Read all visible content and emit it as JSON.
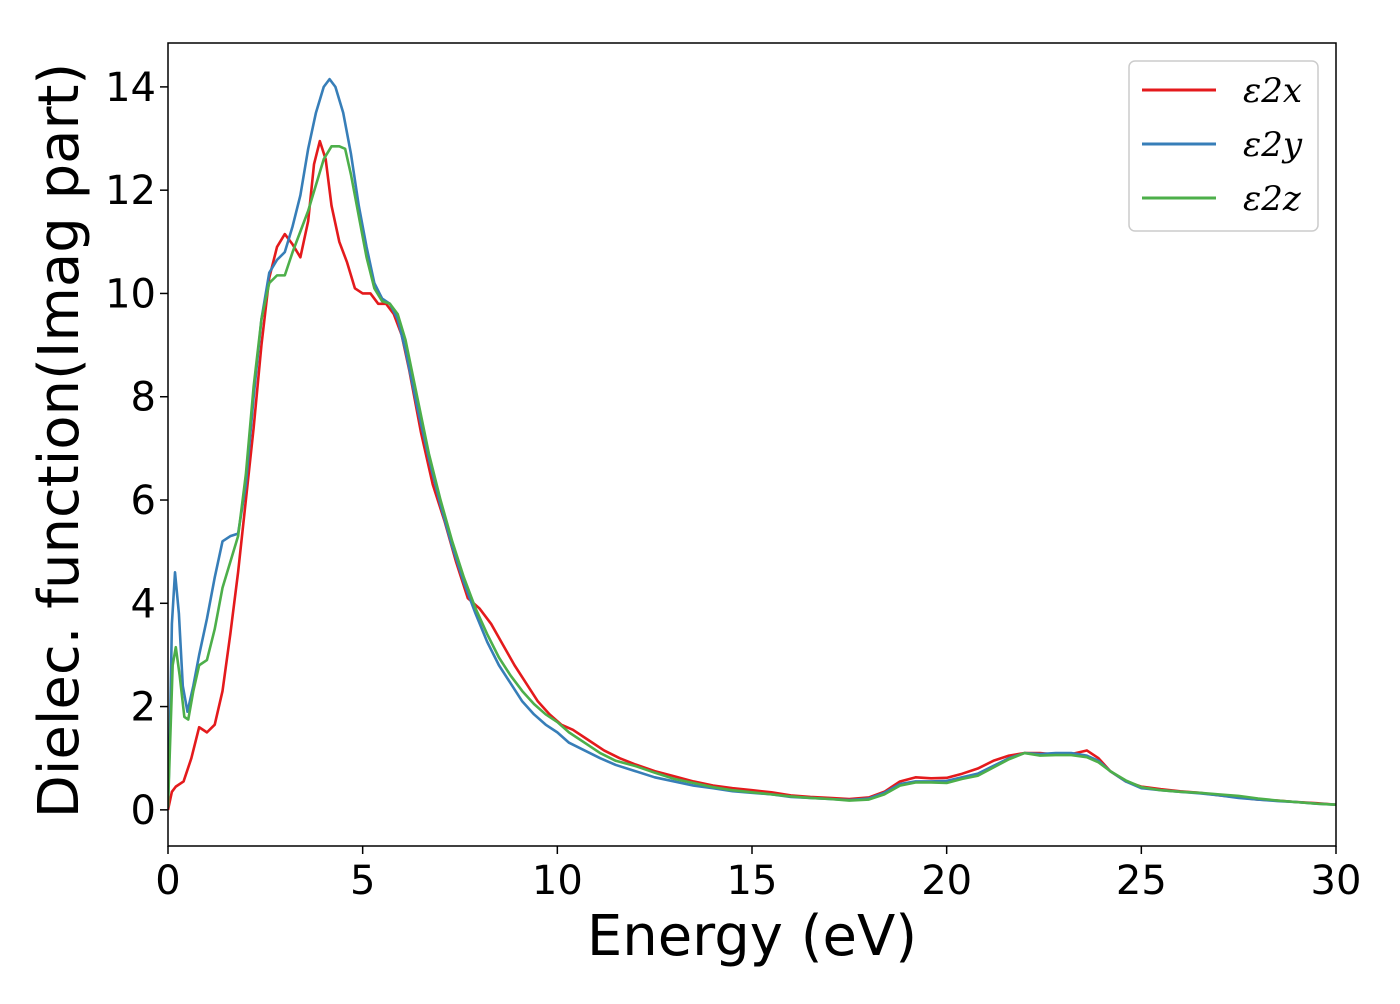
{
  "chart_data": {
    "type": "line",
    "title": "",
    "xlabel": "Energy (eV)",
    "ylabel": "Dielec. function(Imag part)",
    "xlim": [
      0,
      30
    ],
    "ylim": [
      -0.7,
      14.85
    ],
    "xticks": [
      0,
      5,
      10,
      15,
      20,
      25,
      30
    ],
    "yticks": [
      0,
      2,
      4,
      6,
      8,
      10,
      12,
      14
    ],
    "grid": false,
    "legend_position": "top-right",
    "series": [
      {
        "name": "ε2x",
        "color": "#e41a1c",
        "points": [
          [
            0,
            0
          ],
          [
            0.1,
            0.35
          ],
          [
            0.2,
            0.45
          ],
          [
            0.4,
            0.55
          ],
          [
            0.6,
            1.0
          ],
          [
            0.8,
            1.6
          ],
          [
            1.0,
            1.5
          ],
          [
            1.2,
            1.65
          ],
          [
            1.4,
            2.3
          ],
          [
            1.6,
            3.4
          ],
          [
            1.8,
            4.6
          ],
          [
            2.0,
            6.0
          ],
          [
            2.2,
            7.4
          ],
          [
            2.4,
            9.0
          ],
          [
            2.6,
            10.3
          ],
          [
            2.8,
            10.9
          ],
          [
            3.0,
            11.15
          ],
          [
            3.2,
            10.95
          ],
          [
            3.4,
            10.7
          ],
          [
            3.6,
            11.4
          ],
          [
            3.75,
            12.5
          ],
          [
            3.9,
            12.95
          ],
          [
            4.05,
            12.6
          ],
          [
            4.2,
            11.7
          ],
          [
            4.4,
            11.0
          ],
          [
            4.6,
            10.6
          ],
          [
            4.8,
            10.1
          ],
          [
            5.0,
            10.0
          ],
          [
            5.2,
            10.0
          ],
          [
            5.4,
            9.8
          ],
          [
            5.6,
            9.8
          ],
          [
            5.8,
            9.6
          ],
          [
            6.0,
            9.2
          ],
          [
            6.2,
            8.5
          ],
          [
            6.5,
            7.3
          ],
          [
            6.8,
            6.3
          ],
          [
            7.1,
            5.6
          ],
          [
            7.4,
            4.8
          ],
          [
            7.7,
            4.1
          ],
          [
            8.0,
            3.9
          ],
          [
            8.3,
            3.6
          ],
          [
            8.6,
            3.2
          ],
          [
            8.9,
            2.8
          ],
          [
            9.2,
            2.45
          ],
          [
            9.5,
            2.1
          ],
          [
            9.8,
            1.85
          ],
          [
            10.1,
            1.65
          ],
          [
            10.4,
            1.55
          ],
          [
            10.8,
            1.35
          ],
          [
            11.2,
            1.15
          ],
          [
            11.6,
            1.0
          ],
          [
            12.0,
            0.88
          ],
          [
            12.5,
            0.75
          ],
          [
            13.0,
            0.65
          ],
          [
            13.5,
            0.55
          ],
          [
            14.0,
            0.47
          ],
          [
            14.5,
            0.42
          ],
          [
            15.0,
            0.38
          ],
          [
            15.5,
            0.34
          ],
          [
            16.0,
            0.28
          ],
          [
            16.5,
            0.25
          ],
          [
            17.0,
            0.23
          ],
          [
            17.5,
            0.21
          ],
          [
            18.0,
            0.24
          ],
          [
            18.4,
            0.35
          ],
          [
            18.8,
            0.55
          ],
          [
            19.2,
            0.63
          ],
          [
            19.6,
            0.61
          ],
          [
            20.0,
            0.62
          ],
          [
            20.4,
            0.7
          ],
          [
            20.8,
            0.8
          ],
          [
            21.2,
            0.95
          ],
          [
            21.6,
            1.05
          ],
          [
            22.0,
            1.1
          ],
          [
            22.4,
            1.1
          ],
          [
            22.8,
            1.07
          ],
          [
            23.2,
            1.08
          ],
          [
            23.6,
            1.15
          ],
          [
            23.9,
            1.0
          ],
          [
            24.2,
            0.75
          ],
          [
            24.6,
            0.55
          ],
          [
            25.0,
            0.45
          ],
          [
            25.5,
            0.4
          ],
          [
            26.0,
            0.36
          ],
          [
            26.5,
            0.33
          ],
          [
            27.0,
            0.28
          ],
          [
            27.5,
            0.24
          ],
          [
            28.0,
            0.2
          ],
          [
            28.5,
            0.18
          ],
          [
            29.0,
            0.15
          ],
          [
            29.5,
            0.13
          ],
          [
            30.0,
            0.1
          ]
        ]
      },
      {
        "name": "ε2y",
        "color": "#377eb8",
        "points": [
          [
            0,
            0.05
          ],
          [
            0.05,
            1.5
          ],
          [
            0.1,
            3.6
          ],
          [
            0.18,
            4.6
          ],
          [
            0.28,
            3.8
          ],
          [
            0.38,
            2.4
          ],
          [
            0.5,
            1.9
          ],
          [
            0.65,
            2.4
          ],
          [
            0.8,
            3.0
          ],
          [
            1.0,
            3.7
          ],
          [
            1.2,
            4.5
          ],
          [
            1.4,
            5.2
          ],
          [
            1.6,
            5.3
          ],
          [
            1.8,
            5.35
          ],
          [
            2.0,
            6.3
          ],
          [
            2.2,
            8.0
          ],
          [
            2.4,
            9.5
          ],
          [
            2.6,
            10.4
          ],
          [
            2.8,
            10.65
          ],
          [
            3.0,
            10.8
          ],
          [
            3.2,
            11.3
          ],
          [
            3.4,
            11.9
          ],
          [
            3.6,
            12.8
          ],
          [
            3.8,
            13.5
          ],
          [
            4.0,
            14.0
          ],
          [
            4.15,
            14.15
          ],
          [
            4.3,
            14.0
          ],
          [
            4.5,
            13.5
          ],
          [
            4.7,
            12.7
          ],
          [
            4.9,
            11.7
          ],
          [
            5.1,
            10.9
          ],
          [
            5.3,
            10.2
          ],
          [
            5.5,
            9.9
          ],
          [
            5.7,
            9.8
          ],
          [
            5.9,
            9.5
          ],
          [
            6.1,
            8.9
          ],
          [
            6.4,
            7.8
          ],
          [
            6.7,
            6.8
          ],
          [
            7.0,
            5.9
          ],
          [
            7.3,
            5.1
          ],
          [
            7.6,
            4.4
          ],
          [
            7.9,
            3.8
          ],
          [
            8.2,
            3.25
          ],
          [
            8.5,
            2.8
          ],
          [
            8.8,
            2.45
          ],
          [
            9.1,
            2.1
          ],
          [
            9.4,
            1.85
          ],
          [
            9.7,
            1.65
          ],
          [
            10.0,
            1.5
          ],
          [
            10.3,
            1.3
          ],
          [
            10.7,
            1.15
          ],
          [
            11.1,
            1.0
          ],
          [
            11.5,
            0.87
          ],
          [
            12.0,
            0.75
          ],
          [
            12.5,
            0.63
          ],
          [
            13.0,
            0.55
          ],
          [
            13.5,
            0.47
          ],
          [
            14.0,
            0.42
          ],
          [
            14.5,
            0.36
          ],
          [
            15.0,
            0.33
          ],
          [
            15.5,
            0.3
          ],
          [
            16.0,
            0.25
          ],
          [
            16.5,
            0.23
          ],
          [
            17.0,
            0.21
          ],
          [
            17.5,
            0.19
          ],
          [
            18.0,
            0.22
          ],
          [
            18.4,
            0.33
          ],
          [
            18.8,
            0.5
          ],
          [
            19.2,
            0.55
          ],
          [
            19.6,
            0.55
          ],
          [
            20.0,
            0.56
          ],
          [
            20.4,
            0.63
          ],
          [
            20.8,
            0.7
          ],
          [
            21.2,
            0.85
          ],
          [
            21.6,
            1.0
          ],
          [
            22.0,
            1.1
          ],
          [
            22.4,
            1.08
          ],
          [
            22.8,
            1.1
          ],
          [
            23.2,
            1.1
          ],
          [
            23.6,
            1.05
          ],
          [
            23.9,
            0.95
          ],
          [
            24.2,
            0.75
          ],
          [
            24.6,
            0.55
          ],
          [
            25.0,
            0.42
          ],
          [
            25.5,
            0.38
          ],
          [
            26.0,
            0.35
          ],
          [
            26.5,
            0.32
          ],
          [
            27.0,
            0.28
          ],
          [
            27.5,
            0.23
          ],
          [
            28.0,
            0.2
          ],
          [
            28.5,
            0.17
          ],
          [
            29.0,
            0.15
          ],
          [
            29.5,
            0.12
          ],
          [
            30.0,
            0.1
          ]
        ]
      },
      {
        "name": "ε2z",
        "color": "#4daf4a",
        "points": [
          [
            0,
            0.05
          ],
          [
            0.05,
            1.2
          ],
          [
            0.12,
            2.8
          ],
          [
            0.2,
            3.15
          ],
          [
            0.3,
            2.6
          ],
          [
            0.42,
            1.8
          ],
          [
            0.52,
            1.75
          ],
          [
            0.65,
            2.3
          ],
          [
            0.8,
            2.8
          ],
          [
            1.0,
            2.9
          ],
          [
            1.2,
            3.5
          ],
          [
            1.4,
            4.3
          ],
          [
            1.6,
            4.8
          ],
          [
            1.8,
            5.3
          ],
          [
            2.0,
            6.5
          ],
          [
            2.2,
            8.2
          ],
          [
            2.4,
            9.5
          ],
          [
            2.6,
            10.2
          ],
          [
            2.8,
            10.35
          ],
          [
            3.0,
            10.35
          ],
          [
            3.2,
            10.8
          ],
          [
            3.4,
            11.2
          ],
          [
            3.6,
            11.6
          ],
          [
            3.8,
            12.1
          ],
          [
            4.0,
            12.6
          ],
          [
            4.2,
            12.85
          ],
          [
            4.4,
            12.85
          ],
          [
            4.55,
            12.8
          ],
          [
            4.7,
            12.3
          ],
          [
            4.9,
            11.5
          ],
          [
            5.1,
            10.7
          ],
          [
            5.3,
            10.1
          ],
          [
            5.5,
            9.85
          ],
          [
            5.7,
            9.8
          ],
          [
            5.9,
            9.6
          ],
          [
            6.1,
            9.1
          ],
          [
            6.4,
            8.0
          ],
          [
            6.7,
            6.9
          ],
          [
            7.0,
            6.0
          ],
          [
            7.3,
            5.2
          ],
          [
            7.6,
            4.5
          ],
          [
            7.9,
            3.9
          ],
          [
            8.2,
            3.4
          ],
          [
            8.5,
            2.95
          ],
          [
            8.8,
            2.6
          ],
          [
            9.1,
            2.3
          ],
          [
            9.4,
            2.05
          ],
          [
            9.7,
            1.85
          ],
          [
            10.0,
            1.7
          ],
          [
            10.3,
            1.5
          ],
          [
            10.7,
            1.3
          ],
          [
            11.1,
            1.1
          ],
          [
            11.5,
            0.95
          ],
          [
            12.0,
            0.85
          ],
          [
            12.5,
            0.72
          ],
          [
            13.0,
            0.6
          ],
          [
            13.5,
            0.52
          ],
          [
            14.0,
            0.44
          ],
          [
            14.5,
            0.38
          ],
          [
            15.0,
            0.34
          ],
          [
            15.5,
            0.3
          ],
          [
            16.0,
            0.26
          ],
          [
            16.5,
            0.23
          ],
          [
            17.0,
            0.21
          ],
          [
            17.5,
            0.18
          ],
          [
            18.0,
            0.2
          ],
          [
            18.4,
            0.3
          ],
          [
            18.8,
            0.47
          ],
          [
            19.2,
            0.53
          ],
          [
            19.6,
            0.53
          ],
          [
            20.0,
            0.52
          ],
          [
            20.4,
            0.6
          ],
          [
            20.8,
            0.66
          ],
          [
            21.2,
            0.82
          ],
          [
            21.6,
            0.98
          ],
          [
            22.0,
            1.1
          ],
          [
            22.4,
            1.05
          ],
          [
            22.8,
            1.06
          ],
          [
            23.2,
            1.06
          ],
          [
            23.6,
            1.02
          ],
          [
            23.9,
            0.92
          ],
          [
            24.2,
            0.75
          ],
          [
            24.6,
            0.57
          ],
          [
            25.0,
            0.44
          ],
          [
            25.5,
            0.38
          ],
          [
            26.0,
            0.35
          ],
          [
            26.5,
            0.33
          ],
          [
            27.0,
            0.3
          ],
          [
            27.5,
            0.27
          ],
          [
            28.0,
            0.22
          ],
          [
            28.5,
            0.18
          ],
          [
            29.0,
            0.15
          ],
          [
            29.5,
            0.12
          ],
          [
            30.0,
            0.1
          ]
        ]
      }
    ]
  }
}
